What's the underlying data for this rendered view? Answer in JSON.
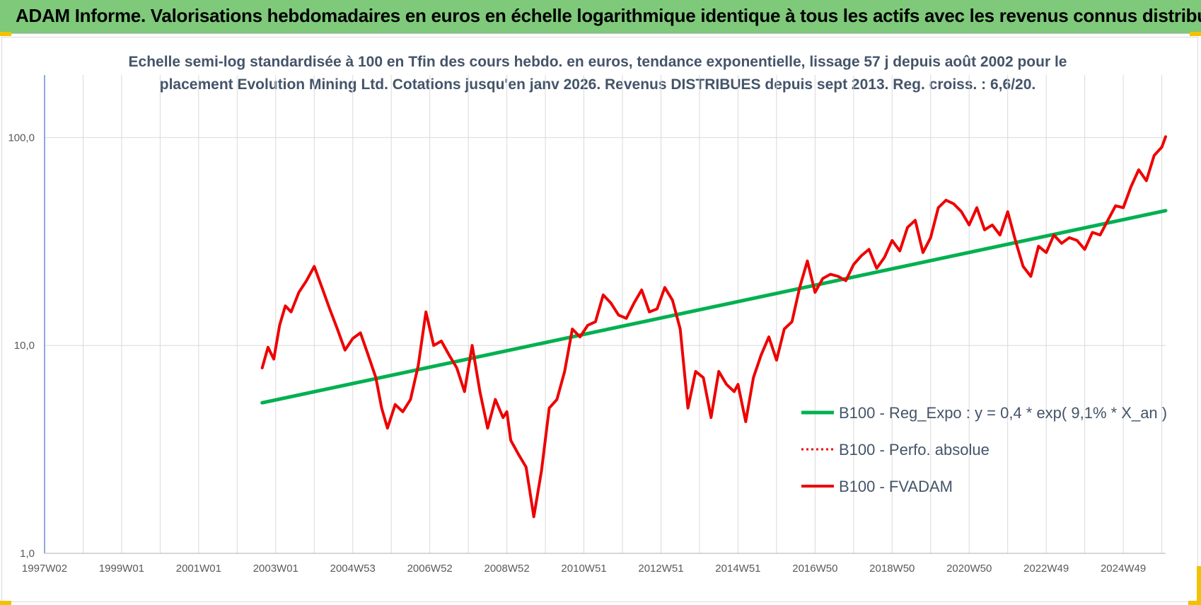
{
  "banner": {
    "title": "ADAM Informe. Valorisations hebdomadaires en euros en échelle logarithmique identique à tous les actifs avec les revenus connus distribués"
  },
  "colors": {
    "banner_bg": "#7ec97a",
    "accent_yellow": "#f2c200",
    "series_fvadam": "#ee0000",
    "series_reg": "#00b050",
    "series_perfo": "#ee0000",
    "title_text": "#44546a",
    "grid": "#d9d9d9",
    "y_axis": "#4472c4"
  },
  "chart_data": {
    "type": "line",
    "title_lines": [
      "Echelle semi-log standardisée à 100 en Tfin des cours hebdo. en euros, tendance exponentielle, lissage 57 j depuis août 2002 pour le",
      "placement Evolution Mining Ltd. Cotations jusqu'en janv 2026. Revenus DISTRIBUES depuis sept 2013. Reg. croiss. : 6,6/20."
    ],
    "y_scale": "log",
    "ylim": [
      1,
      200
    ],
    "y_ticks": [
      {
        "value": 1,
        "label": "1,0"
      },
      {
        "value": 10,
        "label": "10,0"
      },
      {
        "value": 100,
        "label": "100,0"
      }
    ],
    "xlim": [
      1997.0,
      2026.1
    ],
    "x_ticks": [
      {
        "value": 1997.0,
        "label": "1997W02"
      },
      {
        "value": 1999.0,
        "label": "1999W01"
      },
      {
        "value": 2001.0,
        "label": "2001W01"
      },
      {
        "value": 2003.0,
        "label": "2003W01"
      },
      {
        "value": 2005.0,
        "label": "2004W53"
      },
      {
        "value": 2007.0,
        "label": "2006W52"
      },
      {
        "value": 2009.0,
        "label": "2008W52"
      },
      {
        "value": 2011.0,
        "label": "2010W51"
      },
      {
        "value": 2013.0,
        "label": "2012W51"
      },
      {
        "value": 2015.0,
        "label": "2014W51"
      },
      {
        "value": 2017.0,
        "label": "2016W50"
      },
      {
        "value": 2019.0,
        "label": "2018W50"
      },
      {
        "value": 2021.0,
        "label": "2020W50"
      },
      {
        "value": 2023.0,
        "label": "2022W49"
      },
      {
        "value": 2025.0,
        "label": "2024W49"
      }
    ],
    "minor_gridlines_x": [
      1998.0,
      2000.0,
      2002.0,
      2004.0,
      2006.0,
      2008.0,
      2010.0,
      2012.0,
      2014.0,
      2016.0,
      2018.0,
      2020.0,
      2022.0,
      2024.0,
      2026.0
    ],
    "legend_position": "right-middle",
    "series": [
      {
        "name": "B100 - Reg_Expo : y = 0,4 * exp( 9,1% *  X_an )",
        "style": "solid-thick",
        "color": "#00b050",
        "x": [
          2002.65,
          2026.1
        ],
        "y": [
          5.3,
          44.5
        ]
      },
      {
        "name": "B100 - Perfo. absolue",
        "style": "dotted",
        "color": "#ee0000",
        "x": [],
        "y": []
      },
      {
        "name": "B100 - FVADAM",
        "style": "solid",
        "color": "#ee0000",
        "x": [
          2002.65,
          2002.8,
          2002.95,
          2003.1,
          2003.25,
          2003.4,
          2003.6,
          2003.8,
          2004.0,
          2004.2,
          2004.4,
          2004.6,
          2004.8,
          2005.0,
          2005.2,
          2005.4,
          2005.6,
          2005.75,
          2005.9,
          2006.1,
          2006.3,
          2006.5,
          2006.7,
          2006.9,
          2007.1,
          2007.3,
          2007.5,
          2007.7,
          2007.9,
          2008.1,
          2008.3,
          2008.5,
          2008.7,
          2008.9,
          2009.0,
          2009.1,
          2009.3,
          2009.5,
          2009.7,
          2009.9,
          2010.1,
          2010.3,
          2010.5,
          2010.7,
          2010.9,
          2011.1,
          2011.3,
          2011.5,
          2011.7,
          2011.9,
          2012.1,
          2012.3,
          2012.5,
          2012.7,
          2012.9,
          2013.1,
          2013.3,
          2013.5,
          2013.7,
          2013.9,
          2014.1,
          2014.3,
          2014.5,
          2014.7,
          2014.9,
          2015.0,
          2015.2,
          2015.4,
          2015.6,
          2015.8,
          2016.0,
          2016.2,
          2016.4,
          2016.6,
          2016.8,
          2017.0,
          2017.2,
          2017.4,
          2017.6,
          2017.8,
          2018.0,
          2018.2,
          2018.4,
          2018.6,
          2018.8,
          2019.0,
          2019.2,
          2019.4,
          2019.6,
          2019.8,
          2020.0,
          2020.2,
          2020.4,
          2020.6,
          2020.8,
          2021.0,
          2021.2,
          2021.4,
          2021.6,
          2021.8,
          2022.0,
          2022.2,
          2022.4,
          2022.6,
          2022.8,
          2023.0,
          2023.2,
          2023.4,
          2023.6,
          2023.8,
          2024.0,
          2024.2,
          2024.4,
          2024.6,
          2024.8,
          2025.0,
          2025.2,
          2025.4,
          2025.6,
          2025.8,
          2026.0,
          2026.1
        ],
        "y": [
          7.8,
          9.8,
          8.6,
          12.5,
          15.5,
          14.5,
          18.0,
          20.5,
          24.0,
          19.0,
          15.0,
          12.0,
          9.5,
          10.8,
          11.5,
          9.0,
          7.0,
          5.0,
          4.0,
          5.2,
          4.8,
          5.5,
          8.0,
          14.5,
          10.0,
          10.5,
          9.0,
          7.8,
          6.0,
          10.0,
          6.0,
          4.0,
          5.5,
          4.5,
          4.8,
          3.5,
          3.0,
          2.6,
          1.5,
          2.5,
          5.0,
          5.5,
          7.5,
          12.0,
          11.0,
          12.5,
          13.0,
          17.5,
          16.0,
          14.0,
          13.5,
          16.0,
          18.5,
          14.5,
          15.0,
          19.0,
          16.5,
          12.0,
          5.0,
          7.5,
          7.0,
          4.5,
          7.5,
          6.5,
          6.0,
          6.5,
          4.3,
          7.0,
          9.0,
          11.0,
          8.5,
          12.0,
          13.0,
          19.0,
          25.5,
          18.0,
          21.0,
          22.0,
          21.5,
          20.5,
          24.5,
          27.0,
          29.0,
          23.5,
          26.5,
          32.0,
          28.5,
          37.0,
          40.0,
          28.0,
          33.0,
          46.0,
          50.0,
          48.0,
          44.0,
          38.0,
          46.0,
          36.0,
          38.0,
          34.0,
          44.0,
          32.0,
          24.0,
          21.5,
          30.0,
          28.0,
          34.0,
          31.0,
          33.0,
          32.0,
          29.0,
          35.0,
          34.0,
          40.0,
          47.0,
          46.0,
          58.0,
          70.0,
          62.0,
          82.0,
          90.0,
          101.0
        ]
      }
    ]
  }
}
